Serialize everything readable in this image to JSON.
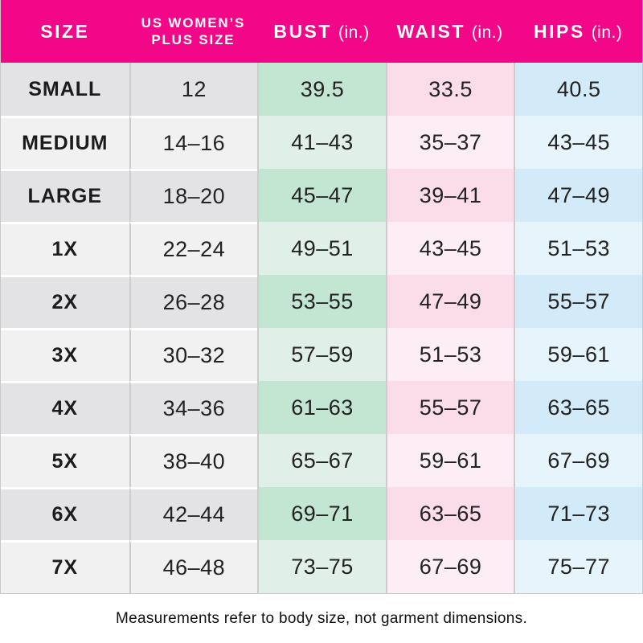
{
  "colors": {
    "header_bg": "#F20789",
    "header_text": "#FFFFFF",
    "col_size_dark": "#E3E3E5",
    "col_size_light": "#F1F1F2",
    "col_bust_dark": "#C3E6D2",
    "col_bust_light": "#E0F0E8",
    "col_waist_dark": "#FBDCE9",
    "col_waist_light": "#FDEEF5",
    "col_hips_dark": "#D3EBF8",
    "col_hips_light": "#E6F4FB",
    "grid_line": "#CDCDCD",
    "row_gap": "#FFFFFF",
    "outer_border": "#C9C9C9",
    "text": "#1C1C1C"
  },
  "header": {
    "columns": [
      {
        "title": "SIZE",
        "title2": "",
        "unit": ""
      },
      {
        "title": "US WOMEN’S",
        "title2": "PLUS SIZE",
        "unit": ""
      },
      {
        "title": "BUST",
        "title2": "",
        "unit": "(in.)"
      },
      {
        "title": "WAIST",
        "title2": "",
        "unit": "(in.)"
      },
      {
        "title": "HIPS",
        "title2": "",
        "unit": "(in.)"
      }
    ]
  },
  "footnote": "Measurements refer to body size, not garment dimensions.",
  "chart_data": {
    "type": "table",
    "columns": [
      "SIZE",
      "US WOMEN’S PLUS SIZE",
      "BUST (in.)",
      "WAIST (in.)",
      "HIPS (in.)"
    ],
    "rows": [
      [
        "SMALL",
        "12",
        "39.5",
        "33.5",
        "40.5"
      ],
      [
        "MEDIUM",
        "14–16",
        "41–43",
        "35–37",
        "43–45"
      ],
      [
        "LARGE",
        "18–20",
        "45–47",
        "39–41",
        "47–49"
      ],
      [
        "1X",
        "22–24",
        "49–51",
        "43–45",
        "51–53"
      ],
      [
        "2X",
        "26–28",
        "53–55",
        "47–49",
        "55–57"
      ],
      [
        "3X",
        "30–32",
        "57–59",
        "51–53",
        "59–61"
      ],
      [
        "4X",
        "34–36",
        "61–63",
        "55–57",
        "63–65"
      ],
      [
        "5X",
        "38–40",
        "65–67",
        "59–61",
        "67–69"
      ],
      [
        "6X",
        "42–44",
        "69–71",
        "63–65",
        "71–73"
      ],
      [
        "7X",
        "46–48",
        "73–75",
        "67–69",
        "75–77"
      ]
    ],
    "layout_hints": {
      "header_background": "#F20789",
      "column_tints": [
        "gray",
        "gray",
        "green",
        "pink",
        "blue"
      ],
      "alternating_row_shades": true
    }
  }
}
